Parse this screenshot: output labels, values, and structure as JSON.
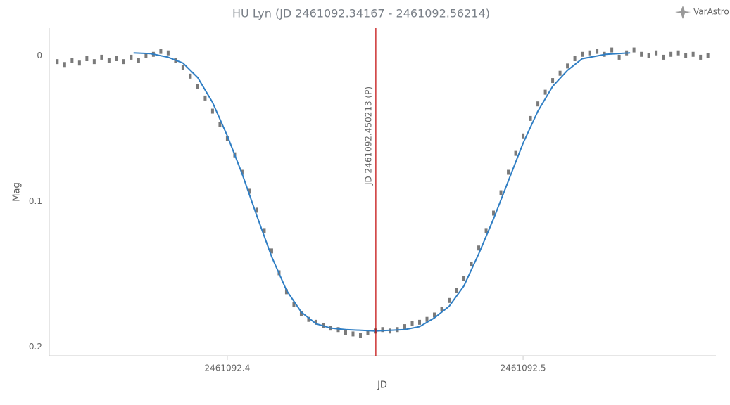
{
  "brand": "VarAstro",
  "chart_data": {
    "type": "scatter",
    "title": "HU Lyn (JD 2461092.34167 - 2461092.56214)",
    "x_label": "JD",
    "y_label": "Mag",
    "xlim": [
      2461092.3398,
      2461092.5652
    ],
    "xticks": [
      2461092.4,
      2461092.5
    ],
    "ylim": [
      -0.019,
      0.206
    ],
    "yticks": [
      0,
      0.1,
      0.2
    ],
    "y_inverted": true,
    "grid": false,
    "annotations": [
      {
        "x": 2461092.450213,
        "label": "JD 2461092.450213 (P)",
        "color": "#c00000"
      }
    ],
    "series": [
      {
        "type": "scatter",
        "color": "#7a7a7a",
        "x": [
          2461092.3425,
          2461092.345,
          2461092.3475,
          2461092.35,
          2461092.3525,
          2461092.355,
          2461092.3575,
          2461092.36,
          2461092.3625,
          2461092.365,
          2461092.3675,
          2461092.37,
          2461092.3725,
          2461092.375,
          2461092.3775,
          2461092.38,
          2461092.3825,
          2461092.385,
          2461092.3875,
          2461092.39,
          2461092.3925,
          2461092.395,
          2461092.3975,
          2461092.4,
          2461092.4025,
          2461092.405,
          2461092.4075,
          2461092.41,
          2461092.4125,
          2461092.415,
          2461092.4175,
          2461092.42,
          2461092.4225,
          2461092.425,
          2461092.4275,
          2461092.43,
          2461092.4325,
          2461092.435,
          2461092.4375,
          2461092.44,
          2461092.4425,
          2461092.445,
          2461092.4475,
          2461092.45,
          2461092.4525,
          2461092.455,
          2461092.4575,
          2461092.46,
          2461092.4625,
          2461092.465,
          2461092.4675,
          2461092.47,
          2461092.4725,
          2461092.475,
          2461092.4775,
          2461092.48,
          2461092.4825,
          2461092.485,
          2461092.4875,
          2461092.49,
          2461092.4925,
          2461092.495,
          2461092.4975,
          2461092.5,
          2461092.5025,
          2461092.505,
          2461092.5075,
          2461092.51,
          2461092.5125,
          2461092.515,
          2461092.5175,
          2461092.52,
          2461092.5225,
          2461092.525,
          2461092.5275,
          2461092.53,
          2461092.5325,
          2461092.535,
          2461092.5375,
          2461092.54,
          2461092.5425,
          2461092.545,
          2461092.5475,
          2461092.55,
          2461092.5525,
          2461092.555,
          2461092.5575,
          2461092.56,
          2461092.5625
        ],
        "values": [
          0.004,
          0.006,
          0.003,
          0.005,
          0.002,
          0.004,
          0.001,
          0.003,
          0.002,
          0.004,
          0.001,
          0.003,
          0.0,
          -0.001,
          -0.003,
          -0.002,
          0.003,
          0.008,
          0.014,
          0.021,
          0.029,
          0.038,
          0.047,
          0.057,
          0.068,
          0.08,
          0.093,
          0.106,
          0.12,
          0.134,
          0.149,
          0.162,
          0.171,
          0.177,
          0.181,
          0.183,
          0.185,
          0.187,
          0.188,
          0.19,
          0.191,
          0.192,
          0.19,
          0.189,
          0.188,
          0.189,
          0.188,
          0.186,
          0.184,
          0.183,
          0.181,
          0.178,
          0.174,
          0.168,
          0.161,
          0.153,
          0.143,
          0.132,
          0.12,
          0.108,
          0.094,
          0.08,
          0.067,
          0.055,
          0.043,
          0.033,
          0.025,
          0.017,
          0.012,
          0.007,
          0.002,
          -0.001,
          -0.002,
          -0.003,
          -0.001,
          -0.004,
          0.001,
          -0.002,
          -0.004,
          -0.001,
          0.0,
          -0.002,
          0.001,
          -0.001,
          -0.002,
          0.0,
          -0.001,
          0.001,
          0.0
        ]
      },
      {
        "type": "line",
        "color": "#2f7ec4",
        "x": [
          2461092.3683,
          2461092.374,
          2461092.38,
          2461092.385,
          2461092.39,
          2461092.395,
          2461092.4,
          2461092.405,
          2461092.41,
          2461092.415,
          2461092.42,
          2461092.425,
          2461092.43,
          2461092.435,
          2461092.44,
          2461092.45,
          2461092.46,
          2461092.465,
          2461092.47,
          2461092.475,
          2461092.48,
          2461092.485,
          2461092.49,
          2461092.495,
          2461092.5,
          2461092.505,
          2461092.51,
          2461092.515,
          2461092.52,
          2461092.528,
          2461092.5362
        ],
        "values": [
          -0.002,
          -0.0015,
          0.001,
          0.005,
          0.015,
          0.032,
          0.055,
          0.081,
          0.11,
          0.138,
          0.161,
          0.176,
          0.184,
          0.187,
          0.188,
          0.189,
          0.188,
          0.186,
          0.18,
          0.172,
          0.158,
          0.136,
          0.112,
          0.086,
          0.06,
          0.038,
          0.021,
          0.01,
          0.002,
          -0.001,
          -0.002
        ]
      }
    ]
  }
}
